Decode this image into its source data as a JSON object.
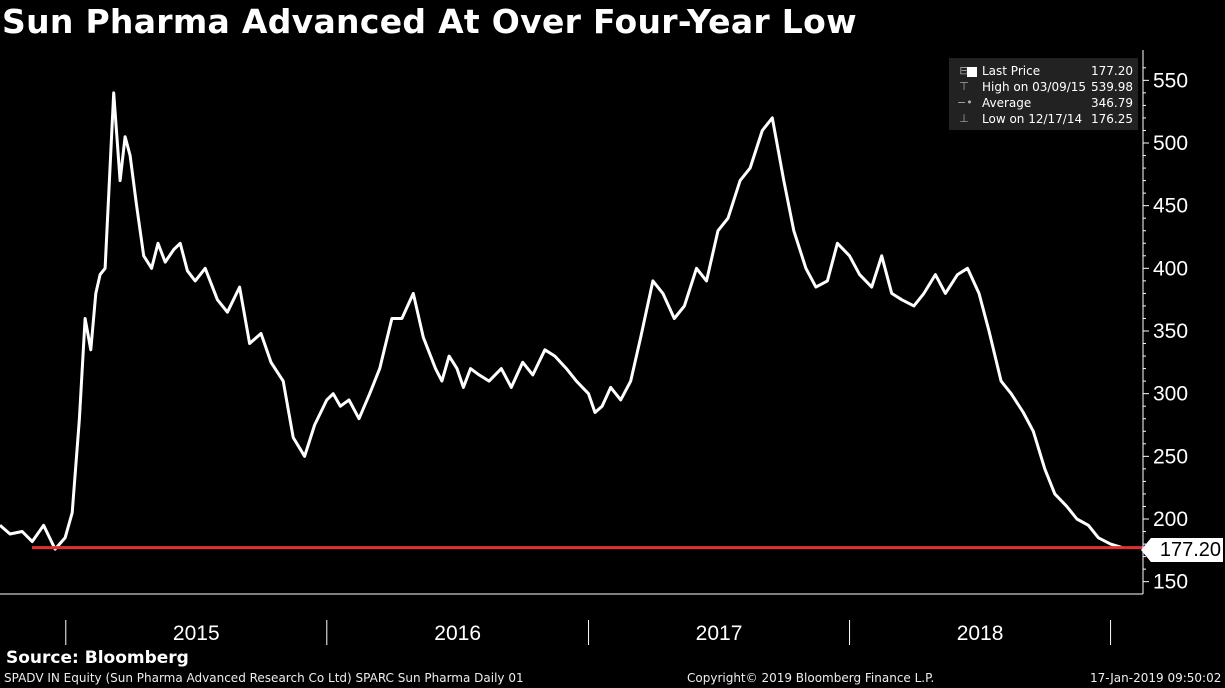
{
  "title": "Sun Pharma Advanced At Over Four-Year Low",
  "legend": {
    "last_price": {
      "label": "Last Price",
      "value": "177.20"
    },
    "high": {
      "label": "High on 03/09/15",
      "value": "539.98"
    },
    "average": {
      "label": "Average",
      "value": "346.79"
    },
    "low": {
      "label": "Low on 12/17/14",
      "value": "176.25"
    }
  },
  "last_price_tag": "177.20",
  "source": "Source: Bloomberg",
  "footer": {
    "left": "SPADV IN Equity (Sun Pharma Advanced Research Co Ltd) SPARC Sun Pharma  Daily 01",
    "center": "Copyright© 2019 Bloomberg Finance L.P.",
    "right": "17-Jan-2019 09:50:02"
  },
  "colors": {
    "background": "#000000",
    "line": "#ffffff",
    "reference_line": "#e03030",
    "legend_bg": "#222222"
  },
  "chart_data": {
    "type": "line",
    "title": "Sun Pharma Advanced At Over Four-Year Low",
    "xlabel": "",
    "ylabel": "",
    "x_tick_labels": [
      "2015",
      "2016",
      "2017",
      "2018"
    ],
    "y_ticks": [
      150,
      200,
      250,
      300,
      350,
      400,
      450,
      500,
      550
    ],
    "ylim": [
      140,
      570
    ],
    "xlim": [
      "2014-10-01",
      "2019-01-17"
    ],
    "grid": false,
    "legend_position": "top-right",
    "reference_line": {
      "name": "Last Price",
      "value": 177.2
    },
    "series": [
      {
        "name": "Last Price",
        "x": [
          "2014-10-01",
          "2014-10-15",
          "2014-11-01",
          "2014-11-15",
          "2014-12-01",
          "2014-12-17",
          "2014-12-31",
          "2015-01-10",
          "2015-01-20",
          "2015-01-28",
          "2015-02-05",
          "2015-02-12",
          "2015-02-18",
          "2015-02-25",
          "2015-03-09",
          "2015-03-18",
          "2015-03-25",
          "2015-04-01",
          "2015-04-10",
          "2015-04-20",
          "2015-05-01",
          "2015-05-10",
          "2015-05-20",
          "2015-06-01",
          "2015-06-10",
          "2015-06-20",
          "2015-07-01",
          "2015-07-15",
          "2015-08-01",
          "2015-08-15",
          "2015-09-01",
          "2015-09-15",
          "2015-10-01",
          "2015-10-15",
          "2015-11-01",
          "2015-11-15",
          "2015-12-01",
          "2015-12-15",
          "2016-01-01",
          "2016-01-10",
          "2016-01-20",
          "2016-02-01",
          "2016-02-15",
          "2016-03-01",
          "2016-03-15",
          "2016-04-01",
          "2016-04-15",
          "2016-05-01",
          "2016-05-15",
          "2016-06-01",
          "2016-06-10",
          "2016-06-20",
          "2016-07-01",
          "2016-07-10",
          "2016-07-20",
          "2016-08-01",
          "2016-08-15",
          "2016-09-01",
          "2016-09-15",
          "2016-10-01",
          "2016-10-15",
          "2016-11-01",
          "2016-11-15",
          "2016-12-01",
          "2016-12-15",
          "2017-01-01",
          "2017-01-10",
          "2017-01-20",
          "2017-02-01",
          "2017-02-15",
          "2017-03-01",
          "2017-03-15",
          "2017-04-01",
          "2017-04-15",
          "2017-05-01",
          "2017-05-15",
          "2017-06-01",
          "2017-06-15",
          "2017-07-01",
          "2017-07-15",
          "2017-08-01",
          "2017-08-15",
          "2017-09-01",
          "2017-09-15",
          "2017-10-01",
          "2017-10-15",
          "2017-11-01",
          "2017-11-15",
          "2017-12-01",
          "2017-12-15",
          "2018-01-01",
          "2018-01-15",
          "2018-02-01",
          "2018-02-15",
          "2018-03-01",
          "2018-03-15",
          "2018-04-01",
          "2018-04-15",
          "2018-05-01",
          "2018-05-15",
          "2018-06-01",
          "2018-06-15",
          "2018-07-01",
          "2018-07-15",
          "2018-08-01",
          "2018-08-15",
          "2018-09-01",
          "2018-09-15",
          "2018-10-01",
          "2018-10-15",
          "2018-11-01",
          "2018-11-15",
          "2018-12-01",
          "2018-12-15",
          "2019-01-01",
          "2019-01-17"
        ],
        "y": [
          195,
          188,
          190,
          182,
          195,
          176,
          185,
          205,
          280,
          360,
          335,
          380,
          395,
          400,
          540,
          470,
          505,
          490,
          450,
          410,
          400,
          420,
          405,
          415,
          420,
          398,
          390,
          400,
          375,
          365,
          385,
          340,
          348,
          325,
          310,
          265,
          250,
          275,
          295,
          300,
          290,
          295,
          280,
          300,
          320,
          360,
          360,
          380,
          345,
          320,
          310,
          330,
          320,
          305,
          320,
          315,
          310,
          320,
          305,
          325,
          315,
          335,
          330,
          320,
          310,
          300,
          285,
          290,
          305,
          295,
          310,
          345,
          390,
          380,
          360,
          370,
          400,
          390,
          430,
          440,
          470,
          480,
          510,
          520,
          470,
          430,
          400,
          385,
          390,
          420,
          410,
          395,
          385,
          410,
          380,
          375,
          370,
          380,
          395,
          380,
          395,
          400,
          380,
          350,
          310,
          300,
          285,
          270,
          240,
          220,
          210,
          200,
          195,
          185,
          180,
          177.2
        ]
      }
    ]
  }
}
